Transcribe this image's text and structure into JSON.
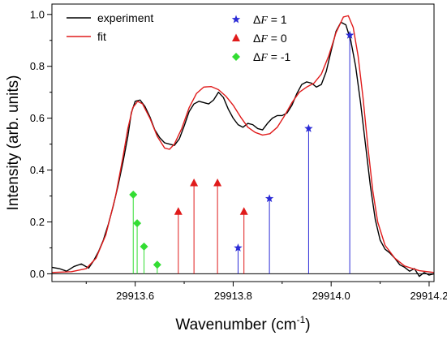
{
  "chart_data": {
    "type": "line",
    "xlabel": "Wavenumber (cm",
    "xlabel_sup": "-1",
    "xlabel_end": ")",
    "ylabel": "Intensity (arb. units)",
    "xlim": [
      29913.43,
      29914.21
    ],
    "ylim": [
      -0.03,
      1.04
    ],
    "x_ticks": [
      29913.6,
      29913.8,
      29914.0,
      29914.2
    ],
    "x_tick_labels": [
      "29913.6",
      "29913.8",
      "29914.0",
      "29914.2"
    ],
    "y_ticks": [
      0.0,
      0.2,
      0.4,
      0.6,
      0.8,
      1.0
    ],
    "y_tick_labels": [
      "0.0",
      "0.2",
      "0.4",
      "0.6",
      "0.8",
      "1.0"
    ],
    "grid": false,
    "legend_placement": "top",
    "colors": {
      "experiment": "#000000",
      "fit": "#e01b1b",
      "dF_plus1": "#2b2bd6",
      "dF_0": "#e01b1b",
      "dF_minus1": "#33dd33",
      "baseline": "#000000"
    },
    "series": [
      {
        "name": "experiment",
        "kind": "line",
        "points": [
          [
            29913.43,
            0.025
          ],
          [
            29913.445,
            0.02
          ],
          [
            29913.46,
            0.01
          ],
          [
            29913.475,
            0.028
          ],
          [
            29913.49,
            0.038
          ],
          [
            29913.505,
            0.022
          ],
          [
            29913.515,
            0.05
          ],
          [
            29913.525,
            0.085
          ],
          [
            29913.535,
            0.13
          ],
          [
            29913.545,
            0.19
          ],
          [
            29913.555,
            0.26
          ],
          [
            29913.565,
            0.34
          ],
          [
            29913.575,
            0.43
          ],
          [
            29913.585,
            0.53
          ],
          [
            29913.592,
            0.62
          ],
          [
            29913.6,
            0.665
          ],
          [
            29913.61,
            0.67
          ],
          [
            29913.62,
            0.645
          ],
          [
            29913.63,
            0.605
          ],
          [
            29913.64,
            0.555
          ],
          [
            29913.65,
            0.525
          ],
          [
            29913.66,
            0.505
          ],
          [
            29913.67,
            0.5
          ],
          [
            29913.68,
            0.495
          ],
          [
            29913.69,
            0.52
          ],
          [
            29913.7,
            0.57
          ],
          [
            29913.71,
            0.625
          ],
          [
            29913.72,
            0.655
          ],
          [
            29913.73,
            0.665
          ],
          [
            29913.74,
            0.66
          ],
          [
            29913.75,
            0.655
          ],
          [
            29913.76,
            0.67
          ],
          [
            29913.77,
            0.7
          ],
          [
            29913.78,
            0.68
          ],
          [
            29913.79,
            0.635
          ],
          [
            29913.8,
            0.6
          ],
          [
            29913.81,
            0.575
          ],
          [
            29913.82,
            0.565
          ],
          [
            29913.83,
            0.58
          ],
          [
            29913.84,
            0.575
          ],
          [
            29913.85,
            0.56
          ],
          [
            29913.86,
            0.555
          ],
          [
            29913.87,
            0.58
          ],
          [
            29913.88,
            0.6
          ],
          [
            29913.89,
            0.61
          ],
          [
            29913.9,
            0.61
          ],
          [
            29913.91,
            0.62
          ],
          [
            29913.92,
            0.65
          ],
          [
            29913.93,
            0.695
          ],
          [
            29913.94,
            0.73
          ],
          [
            29913.95,
            0.74
          ],
          [
            29913.96,
            0.735
          ],
          [
            29913.97,
            0.72
          ],
          [
            29913.98,
            0.73
          ],
          [
            29913.99,
            0.78
          ],
          [
            29914.0,
            0.86
          ],
          [
            29914.01,
            0.935
          ],
          [
            29914.02,
            0.97
          ],
          [
            29914.03,
            0.96
          ],
          [
            29914.04,
            0.9
          ],
          [
            29914.05,
            0.8
          ],
          [
            29914.06,
            0.66
          ],
          [
            29914.07,
            0.5
          ],
          [
            29914.08,
            0.34
          ],
          [
            29914.09,
            0.21
          ],
          [
            29914.1,
            0.13
          ],
          [
            29914.11,
            0.095
          ],
          [
            29914.12,
            0.08
          ],
          [
            29914.13,
            0.06
          ],
          [
            29914.14,
            0.035
          ],
          [
            29914.15,
            0.025
          ],
          [
            29914.16,
            0.01
          ],
          [
            29914.17,
            0.02
          ],
          [
            29914.18,
            -0.01
          ],
          [
            29914.19,
            0.005
          ],
          [
            29914.2,
            -0.005
          ],
          [
            29914.21,
            0.0
          ]
        ]
      },
      {
        "name": "fit",
        "kind": "line",
        "points": [
          [
            29913.43,
            0.005
          ],
          [
            29913.47,
            0.008
          ],
          [
            29913.5,
            0.02
          ],
          [
            29913.52,
            0.06
          ],
          [
            29913.54,
            0.15
          ],
          [
            29913.56,
            0.3
          ],
          [
            29913.575,
            0.45
          ],
          [
            29913.585,
            0.56
          ],
          [
            29913.595,
            0.64
          ],
          [
            29913.605,
            0.665
          ],
          [
            29913.615,
            0.655
          ],
          [
            29913.63,
            0.6
          ],
          [
            29913.645,
            0.53
          ],
          [
            29913.66,
            0.485
          ],
          [
            29913.67,
            0.48
          ],
          [
            29913.68,
            0.5
          ],
          [
            29913.695,
            0.56
          ],
          [
            29913.71,
            0.64
          ],
          [
            29913.725,
            0.695
          ],
          [
            29913.74,
            0.72
          ],
          [
            29913.755,
            0.722
          ],
          [
            29913.77,
            0.71
          ],
          [
            29913.785,
            0.685
          ],
          [
            29913.8,
            0.65
          ],
          [
            29913.815,
            0.605
          ],
          [
            29913.83,
            0.565
          ],
          [
            29913.845,
            0.545
          ],
          [
            29913.86,
            0.535
          ],
          [
            29913.875,
            0.54
          ],
          [
            29913.89,
            0.565
          ],
          [
            29913.905,
            0.61
          ],
          [
            29913.92,
            0.66
          ],
          [
            29913.935,
            0.7
          ],
          [
            29913.95,
            0.72
          ],
          [
            29913.965,
            0.735
          ],
          [
            29913.98,
            0.77
          ],
          [
            29913.995,
            0.84
          ],
          [
            29914.01,
            0.93
          ],
          [
            29914.025,
            0.99
          ],
          [
            29914.035,
            0.995
          ],
          [
            29914.045,
            0.95
          ],
          [
            29914.055,
            0.84
          ],
          [
            29914.065,
            0.68
          ],
          [
            29914.075,
            0.49
          ],
          [
            29914.085,
            0.32
          ],
          [
            29914.095,
            0.2
          ],
          [
            29914.11,
            0.11
          ],
          [
            29914.13,
            0.06
          ],
          [
            29914.15,
            0.03
          ],
          [
            29914.18,
            0.012
          ],
          [
            29914.21,
            0.005
          ]
        ]
      },
      {
        "name": "ΔF = 1",
        "kind": "stick",
        "marker": "star",
        "points": [
          [
            29913.81,
            0.1
          ],
          [
            29913.874,
            0.29
          ],
          [
            29913.954,
            0.56
          ],
          [
            29914.038,
            0.92
          ]
        ]
      },
      {
        "name": "ΔF = 0",
        "kind": "stick",
        "marker": "triangle",
        "points": [
          [
            29913.688,
            0.24
          ],
          [
            29913.72,
            0.35
          ],
          [
            29913.768,
            0.35
          ],
          [
            29913.822,
            0.24
          ]
        ]
      },
      {
        "name": "ΔF = -1",
        "kind": "stick",
        "marker": "diamond",
        "points": [
          [
            29913.596,
            0.305
          ],
          [
            29913.604,
            0.195
          ],
          [
            29913.618,
            0.105
          ],
          [
            29913.645,
            0.035
          ]
        ]
      }
    ],
    "legend": {
      "left_entries": [
        {
          "label": "experiment",
          "series": "experiment"
        },
        {
          "label": "fit",
          "series": "fit"
        }
      ],
      "right_entries": [
        {
          "label_prefix": "Δ",
          "label_var": "F",
          "label_suffix": " = 1",
          "series": "ΔF = 1"
        },
        {
          "label_prefix": "Δ",
          "label_var": "F",
          "label_suffix": " = 0",
          "series": "ΔF = 0"
        },
        {
          "label_prefix": "Δ",
          "label_var": "F",
          "label_suffix": " = -1",
          "series": "ΔF = -1"
        }
      ]
    }
  }
}
